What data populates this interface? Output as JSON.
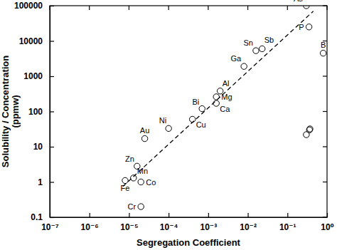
{
  "chart_data": {
    "type": "scatter",
    "x_label": "Segregation Coefficient",
    "y_label": [
      "Solubility / Concentration",
      "(ppmw)"
    ],
    "log": true,
    "grid": false,
    "color": "#000000",
    "xlim": [
      1e-07,
      1
    ],
    "ylim": [
      0.1,
      100000
    ],
    "xticks": [
      {
        "value": 1e-07,
        "label": "10⁻⁷"
      },
      {
        "value": 1e-06,
        "label": "10⁻⁶"
      },
      {
        "value": 1e-05,
        "label": "10⁻⁵"
      },
      {
        "value": 0.0001,
        "label": "10⁻⁴"
      },
      {
        "value": 0.001,
        "label": "10⁻³"
      },
      {
        "value": 0.01,
        "label": "10⁻²"
      },
      {
        "value": 0.1,
        "label": "10⁻¹"
      },
      {
        "value": 1,
        "label": "10⁰"
      }
    ],
    "yticks": [
      0.1,
      1,
      10,
      100,
      1000,
      10000,
      100000
    ],
    "series": [
      {
        "type": "scatter",
        "marker": "circle",
        "color": "#000000",
        "labels": [
          "Cr",
          "Fe",
          "Mn",
          "Co",
          "Zn",
          "Au",
          "Ni",
          "Cu",
          "Bi",
          "Mg",
          "Al",
          "Ca",
          "Ga",
          "Sn",
          "Sb",
          "As",
          "P",
          "B",
          null,
          null,
          null
        ],
        "x": [
          2e-05,
          8e-06,
          1.3e-05,
          2e-05,
          1.6e-05,
          2.5e-05,
          0.0001,
          0.0004,
          0.0007,
          0.0016,
          0.002,
          0.0016,
          0.008,
          0.016,
          0.023,
          0.3,
          0.35,
          0.8,
          0.3,
          0.36,
          0.37
        ],
        "values": [
          0.2,
          1.1,
          1.3,
          1.0,
          2.8,
          17,
          33,
          60,
          120,
          260,
          380,
          170,
          1900,
          5300,
          6000,
          100000,
          25000,
          4500,
          22,
          30,
          32
        ]
      },
      {
        "type": "line",
        "line_style": "dashed",
        "color": "#000000",
        "x": [
          7e-06,
          0.45
        ],
        "values": [
          0.75,
          70000
        ]
      }
    ]
  }
}
